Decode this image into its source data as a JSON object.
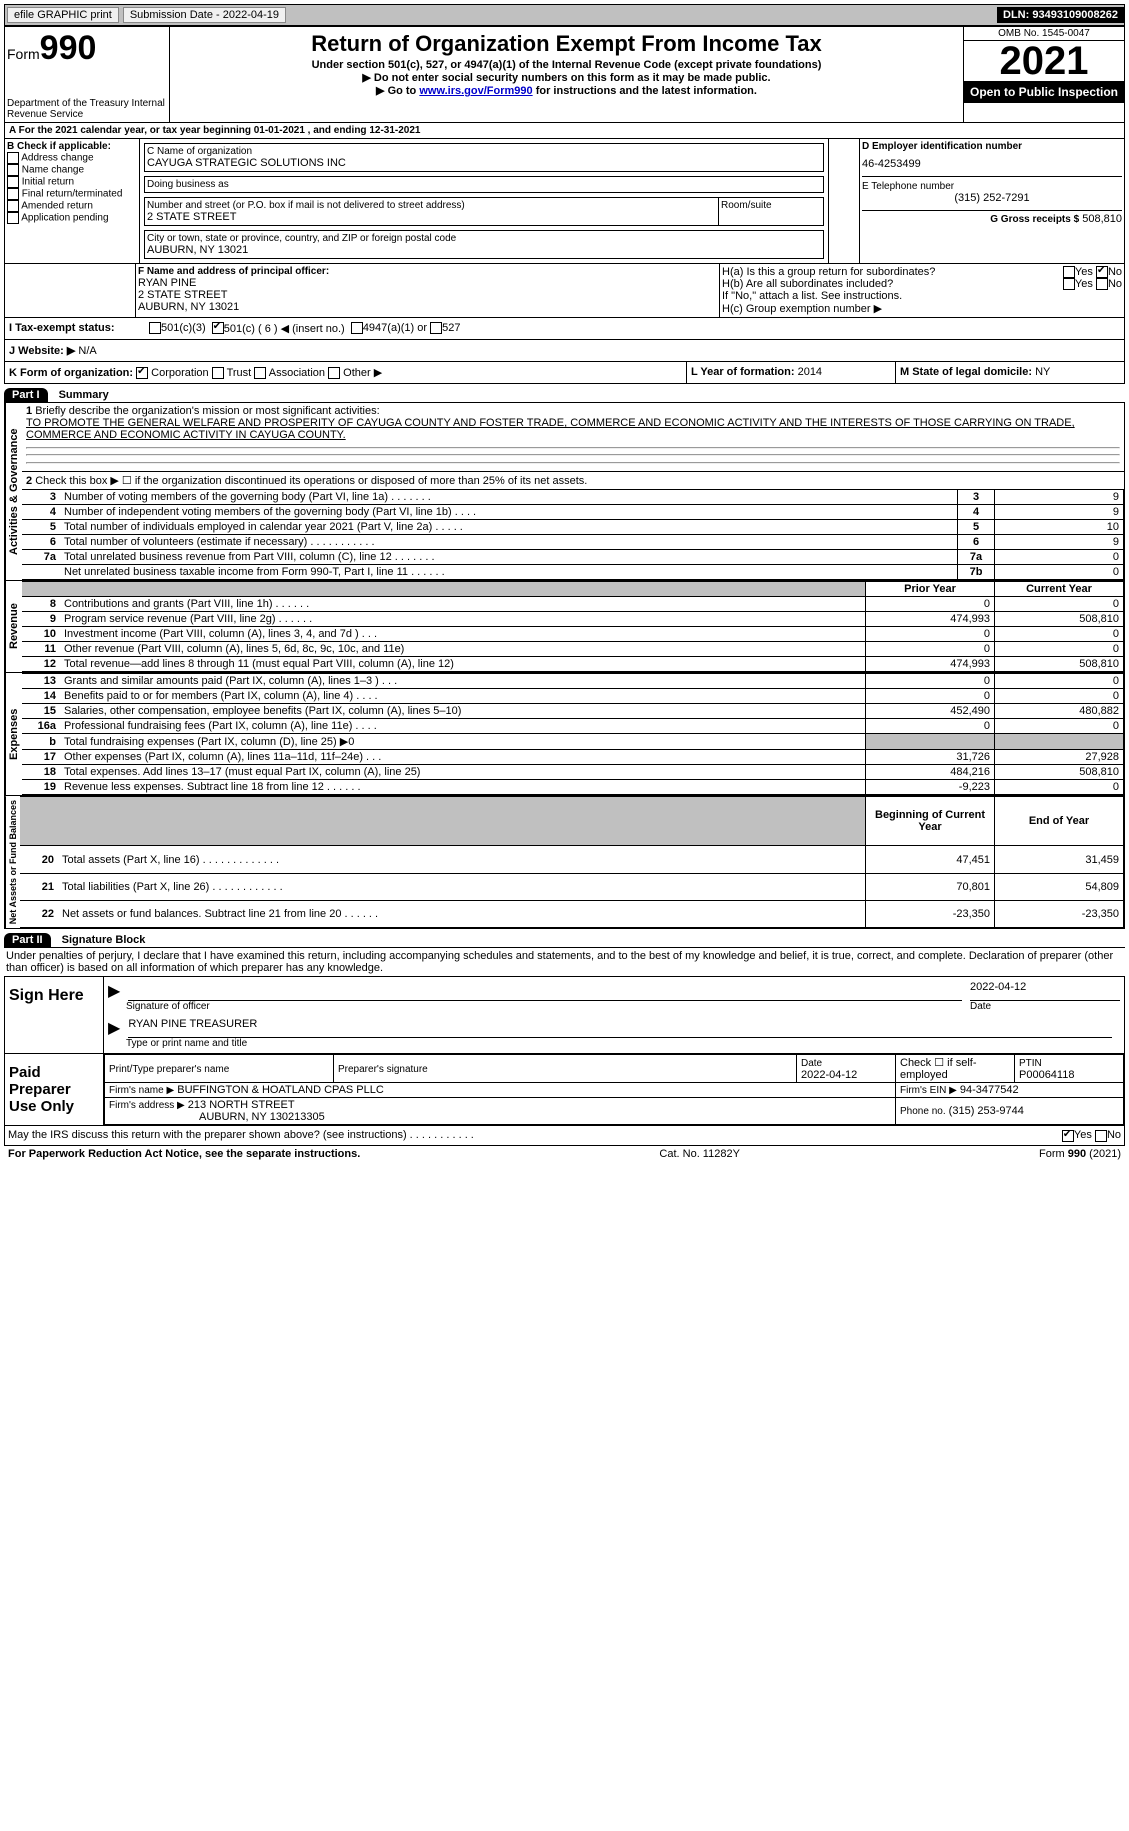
{
  "topbar": {
    "efile": "efile GRAPHIC print",
    "submission": "Submission Date - 2022-04-19",
    "dln_label": "DLN:",
    "dln": "93493109008262"
  },
  "header": {
    "form_word": "Form",
    "form_num": "990",
    "dept": "Department of the Treasury\nInternal Revenue Service",
    "title": "Return of Organization Exempt From Income Tax",
    "sub1": "Under section 501(c), 527, or 4947(a)(1) of the Internal Revenue Code (except private foundations)",
    "sub2": "▶ Do not enter social security numbers on this form as it may be made public.",
    "sub3_pre": "▶ Go to ",
    "sub3_link": "www.irs.gov/Form990",
    "sub3_post": " for instructions and the latest information.",
    "omb": "OMB No. 1545-0047",
    "year": "2021",
    "open": "Open to Public Inspection"
  },
  "a": {
    "line": "A For the 2021 calendar year, or tax year beginning 01-01-2021   , and ending 12-31-2021"
  },
  "b": {
    "label": "B Check if applicable:",
    "opts": [
      "Address change",
      "Name change",
      "Initial return",
      "Final return/terminated",
      "Amended return",
      "Application pending"
    ]
  },
  "c": {
    "name_label": "C Name of organization",
    "name": "CAYUGA STRATEGIC SOLUTIONS INC",
    "dba_label": "Doing business as",
    "dba": "",
    "street_label": "Number and street (or P.O. box if mail is not delivered to street address)",
    "room_label": "Room/suite",
    "street": "2 STATE STREET",
    "city_label": "City or town, state or province, country, and ZIP or foreign postal code",
    "city": "AUBURN, NY  13021"
  },
  "d": {
    "label": "D Employer identification number",
    "val": "46-4253499"
  },
  "e": {
    "label": "E Telephone number",
    "val": "(315) 252-7291"
  },
  "g": {
    "label": "G Gross receipts $",
    "val": "508,810"
  },
  "f": {
    "label": "F  Name and address of principal officer:",
    "name": "RYAN PINE",
    "street": "2 STATE STREET",
    "city": "AUBURN, NY  13021"
  },
  "h": {
    "a": "H(a)  Is this a group return for subordinates?",
    "b": "H(b)  Are all subordinates included?",
    "b2": "If \"No,\" attach a list. See instructions.",
    "c": "H(c)  Group exemption number ▶",
    "yes": "Yes",
    "no": "No"
  },
  "i": {
    "label": "I   Tax-exempt status:",
    "o1": "501(c)(3)",
    "o2": "501(c) ( 6 ) ◀ (insert no.)",
    "o3": "4947(a)(1) or",
    "o4": "527"
  },
  "j": {
    "label": "J   Website: ▶",
    "val": "N/A"
  },
  "k": {
    "label": "K Form of organization:",
    "o1": "Corporation",
    "o2": "Trust",
    "o3": "Association",
    "o4": "Other ▶"
  },
  "l": {
    "label": "L Year of formation:",
    "val": "2014"
  },
  "m": {
    "label": "M State of legal domicile:",
    "val": "NY"
  },
  "part1": {
    "header": "Part I",
    "title": "Summary",
    "q1": "Briefly describe the organization's mission or most significant activities:",
    "q1_val": "TO PROMOTE THE GENERAL WELFARE AND PROSPERITY OF CAYUGA COUNTY AND FOSTER TRADE, COMMERCE AND ECONOMIC ACTIVITY AND THE INTERESTS OF THOSE CARRYING ON TRADE, COMMERCE AND ECONOMIC ACTIVITY IN CAYUGA COUNTY.",
    "q2": "Check this box ▶ ☐ if the organization discontinued its operations or disposed of more than 25% of its net assets.",
    "lines_ag": [
      {
        "n": "3",
        "t": "Number of voting members of the governing body (Part VI, line 1a)  .   .   .   .   .   .   .",
        "box": "3",
        "v": "9"
      },
      {
        "n": "4",
        "t": "Number of independent voting members of the governing body (Part VI, line 1b)  .   .   .   .",
        "box": "4",
        "v": "9"
      },
      {
        "n": "5",
        "t": "Total number of individuals employed in calendar year 2021 (Part V, line 2a)  .   .   .   .   .",
        "box": "5",
        "v": "10"
      },
      {
        "n": "6",
        "t": "Total number of volunteers (estimate if necessary)   .   .   .   .   .   .   .   .   .   .   .",
        "box": "6",
        "v": "9"
      },
      {
        "n": "7a",
        "t": "Total unrelated business revenue from Part VIII, column (C), line 12  .   .   .   .   .   .   .",
        "box": "7a",
        "v": "0"
      },
      {
        "n": "",
        "t": "Net unrelated business taxable income from Form 990-T, Part I, line 11  .   .   .   .   .   .",
        "box": "7b",
        "v": "0"
      }
    ],
    "col_prior": "Prior Year",
    "col_curr": "Current Year",
    "lines_rev": [
      {
        "n": "8",
        "t": "Contributions and grants (Part VIII, line 1h)   .   .   .   .   .   .",
        "p": "0",
        "c": "0"
      },
      {
        "n": "9",
        "t": "Program service revenue (Part VIII, line 2g)   .   .   .   .   .   .",
        "p": "474,993",
        "c": "508,810"
      },
      {
        "n": "10",
        "t": "Investment income (Part VIII, column (A), lines 3, 4, and 7d )   .   .   .",
        "p": "0",
        "c": "0"
      },
      {
        "n": "11",
        "t": "Other revenue (Part VIII, column (A), lines 5, 6d, 8c, 9c, 10c, and 11e)",
        "p": "0",
        "c": "0"
      },
      {
        "n": "12",
        "t": "Total revenue—add lines 8 through 11 (must equal Part VIII, column (A), line 12)",
        "p": "474,993",
        "c": "508,810"
      }
    ],
    "lines_exp": [
      {
        "n": "13",
        "t": "Grants and similar amounts paid (Part IX, column (A), lines 1–3 )  .   .   .",
        "p": "0",
        "c": "0"
      },
      {
        "n": "14",
        "t": "Benefits paid to or for members (Part IX, column (A), line 4)  .   .   .   .",
        "p": "0",
        "c": "0"
      },
      {
        "n": "15",
        "t": "Salaries, other compensation, employee benefits (Part IX, column (A), lines 5–10)",
        "p": "452,490",
        "c": "480,882"
      },
      {
        "n": "16a",
        "t": "Professional fundraising fees (Part IX, column (A), line 11e)   .   .   .   .",
        "p": "0",
        "c": "0"
      },
      {
        "n": "b",
        "t": "Total fundraising expenses (Part IX, column (D), line 25) ▶0",
        "p": "",
        "c": "",
        "grey": true,
        "noval": true
      },
      {
        "n": "17",
        "t": "Other expenses (Part IX, column (A), lines 11a–11d, 11f–24e)   .   .   .",
        "p": "31,726",
        "c": "27,928"
      },
      {
        "n": "18",
        "t": "Total expenses. Add lines 13–17 (must equal Part IX, column (A), line 25)",
        "p": "484,216",
        "c": "508,810"
      },
      {
        "n": "19",
        "t": "Revenue less expenses. Subtract line 18 from line 12  .   .   .   .   .   .",
        "p": "-9,223",
        "c": "0"
      }
    ],
    "col_beg": "Beginning of Current Year",
    "col_end": "End of Year",
    "lines_na": [
      {
        "n": "20",
        "t": "Total assets (Part X, line 16)  .   .   .   .   .   .   .   .   .   .   .   .   .",
        "p": "47,451",
        "c": "31,459"
      },
      {
        "n": "21",
        "t": "Total liabilities (Part X, line 26)  .   .   .   .   .   .   .   .   .   .   .   .",
        "p": "70,801",
        "c": "54,809"
      },
      {
        "n": "22",
        "t": "Net assets or fund balances. Subtract line 21 from line 20 .   .   .   .   .   .",
        "p": "-23,350",
        "c": "-23,350"
      }
    ],
    "vert_ag": "Activities & Governance",
    "vert_rev": "Revenue",
    "vert_exp": "Expenses",
    "vert_na": "Net Assets or Fund Balances"
  },
  "part2": {
    "header": "Part II",
    "title": "Signature Block",
    "decl": "Under penalties of perjury, I declare that I have examined this return, including accompanying schedules and statements, and to the best of my knowledge and belief, it is true, correct, and complete. Declaration of preparer (other than officer) is based on all information of which preparer has any knowledge.",
    "sign_here": "Sign Here",
    "sig_officer": "Signature of officer",
    "sig_date": "2022-04-12",
    "date_label": "Date",
    "officer_name": "RYAN PINE TREASURER",
    "type_name_label": "Type or print name and title",
    "paid": "Paid Preparer Use Only",
    "prep_name_label": "Print/Type preparer's name",
    "prep_sig_label": "Preparer's signature",
    "prep_date": "2022-04-12",
    "self_emp": "Check ☐ if self-employed",
    "ptin_label": "PTIN",
    "ptin": "P00064118",
    "firm_name_label": "Firm's name    ▶",
    "firm_name": "BUFFINGTON & HOATLAND CPAS PLLC",
    "firm_ein_label": "Firm's EIN ▶",
    "firm_ein": "94-3477542",
    "firm_addr_label": "Firm's address ▶",
    "firm_addr": "213 NORTH STREET",
    "firm_city": "AUBURN, NY  130213305",
    "firm_phone_label": "Phone no.",
    "firm_phone": "(315) 253-9744",
    "discuss": "May the IRS discuss this return with the preparer shown above? (see instructions)   .    .    .    .    .    .    .    .    .    .    .",
    "yes": "Yes",
    "no": "No"
  },
  "footer": {
    "left": "For Paperwork Reduction Act Notice, see the separate instructions.",
    "mid": "Cat. No. 11282Y",
    "right": "Form 990 (2021)"
  }
}
